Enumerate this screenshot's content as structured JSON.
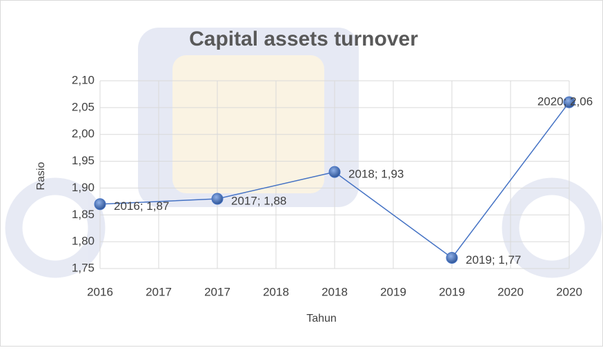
{
  "chart_data": {
    "type": "line",
    "title": "Capital assets turnover",
    "x_label": "Tahun",
    "y_label": "Rasio",
    "x": [
      2016,
      2017,
      2018,
      2019,
      2020
    ],
    "series": [
      {
        "name": "Rasio",
        "color": "#4472c4",
        "values": [
          1.87,
          1.88,
          1.93,
          1.77,
          2.06
        ],
        "value_labels": [
          "2016; 1,87",
          "2017; 1,88",
          "2018; 1,93",
          "2019; 1,77",
          "2020; 2,06"
        ]
      }
    ],
    "xlim": [
      2016,
      2020
    ],
    "xticks": [
      2016,
      {
        "value": 2016.5,
        "label": "2017"
      },
      2017,
      {
        "value": 2017.5,
        "label": "2018"
      },
      2018,
      {
        "value": 2018.5,
        "label": "2019"
      },
      2019,
      {
        "value": 2019.5,
        "label": "2020"
      },
      2020
    ],
    "ylim": [
      1.75,
      2.1
    ],
    "yticks": [
      {
        "value": 1.75,
        "label": "1,75"
      },
      {
        "value": 1.8,
        "label": "1,80"
      },
      {
        "value": 1.85,
        "label": "1,85"
      },
      {
        "value": 1.9,
        "label": "1,90"
      },
      {
        "value": 1.95,
        "label": "1,95"
      },
      {
        "value": 2.0,
        "label": "2,00"
      },
      {
        "value": 2.05,
        "label": "2,05"
      },
      {
        "value": 2.1,
        "label": "2,10"
      }
    ],
    "grid": true
  }
}
